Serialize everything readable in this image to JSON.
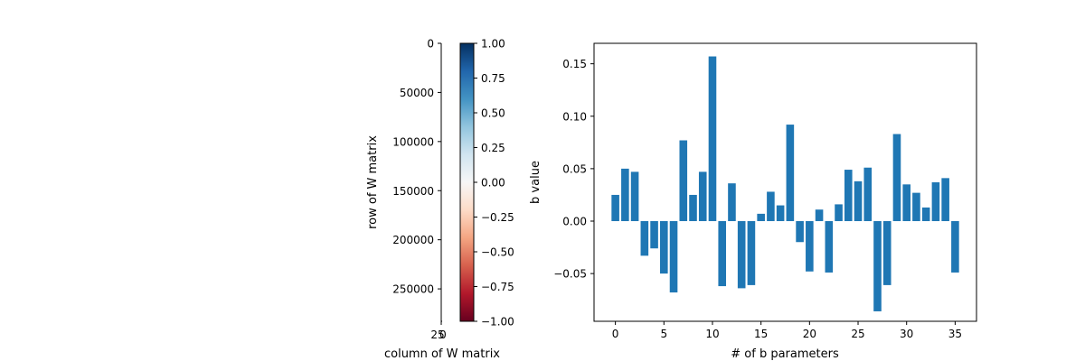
{
  "chart_data": [
    {
      "type": "heatmap",
      "xlabel": "column of W matrix",
      "ylabel": "row of W matrix",
      "x_ticks": [
        "25",
        "0"
      ],
      "y_ticks": [
        0,
        50000,
        100000,
        150000,
        200000,
        250000
      ],
      "ylim": [
        283000,
        0
      ],
      "colormap": "RdBu",
      "colorbar": {
        "ticks": [
          "1.00",
          "0.75",
          "0.50",
          "0.25",
          "0.00",
          "−0.25",
          "−0.50",
          "−0.75",
          "−1.00"
        ],
        "tick_values": [
          1.0,
          0.75,
          0.5,
          0.25,
          0.0,
          -0.25,
          -0.5,
          -0.75,
          -1.0
        ],
        "range": [
          -1,
          1
        ],
        "colors": [
          "#67001f",
          "#b2182b",
          "#d6604d",
          "#f4a582",
          "#fddbc7",
          "#f7f7f7",
          "#d1e5f0",
          "#92c5de",
          "#4393c3",
          "#2166ac",
          "#053061"
        ]
      }
    },
    {
      "type": "bar",
      "xlabel": "# of b parameters",
      "ylabel": "b value",
      "x_ticks": [
        0,
        5,
        10,
        15,
        20,
        25,
        30,
        35
      ],
      "y_ticks": [
        "−0.05",
        "0.00",
        "0.05",
        "0.10",
        "0.15"
      ],
      "y_tick_values": [
        -0.05,
        0.0,
        0.05,
        0.1,
        0.15
      ],
      "xlim": [
        -2.2,
        37.2
      ],
      "ylim": [
        -0.0955,
        0.1695
      ],
      "color": "#1f77b4",
      "x": [
        0,
        1,
        2,
        3,
        4,
        5,
        6,
        7,
        8,
        9,
        10,
        11,
        12,
        13,
        14,
        15,
        16,
        17,
        18,
        19,
        20,
        21,
        22,
        23,
        24,
        25,
        26,
        27,
        28,
        29,
        30,
        31,
        32,
        33,
        34,
        35
      ],
      "values": [
        0.025,
        0.05,
        0.047,
        -0.033,
        -0.026,
        -0.05,
        -0.068,
        0.077,
        0.025,
        0.047,
        0.157,
        -0.062,
        0.036,
        -0.064,
        -0.061,
        0.007,
        0.028,
        0.015,
        0.092,
        -0.02,
        -0.048,
        0.011,
        -0.049,
        0.016,
        0.049,
        0.038,
        0.051,
        -0.086,
        -0.061,
        0.083,
        0.035,
        0.027,
        0.013,
        0.037,
        0.041,
        -0.049
      ]
    }
  ]
}
